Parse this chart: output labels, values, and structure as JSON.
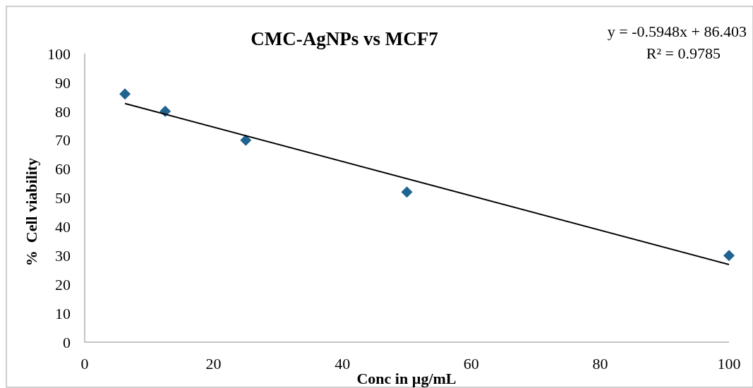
{
  "chart_data": {
    "type": "scatter",
    "title": "CMC-AgNPs vs MCF7",
    "xlabel": "Conc in µg/mL",
    "ylabel": "%  Cell viability",
    "annotations": [
      "y = -0.5948x + 86.403",
      "R² = 0.9785"
    ],
    "xlim": [
      0,
      100
    ],
    "xticks": [
      0,
      20,
      40,
      60,
      80,
      100
    ],
    "ylim": [
      0,
      100
    ],
    "yticks": [
      0,
      10,
      20,
      30,
      40,
      50,
      60,
      70,
      80,
      90,
      100
    ],
    "grid": false,
    "series": [
      {
        "marker": "diamond",
        "color": "#1f6391",
        "x": [
          6.25,
          12.5,
          25,
          50,
          100
        ],
        "values": [
          86,
          80,
          70,
          52,
          30
        ]
      },
      {
        "type": "line",
        "color": "#000000",
        "x": [
          6.25,
          100
        ],
        "values": [
          82.7,
          26.9
        ]
      }
    ]
  }
}
